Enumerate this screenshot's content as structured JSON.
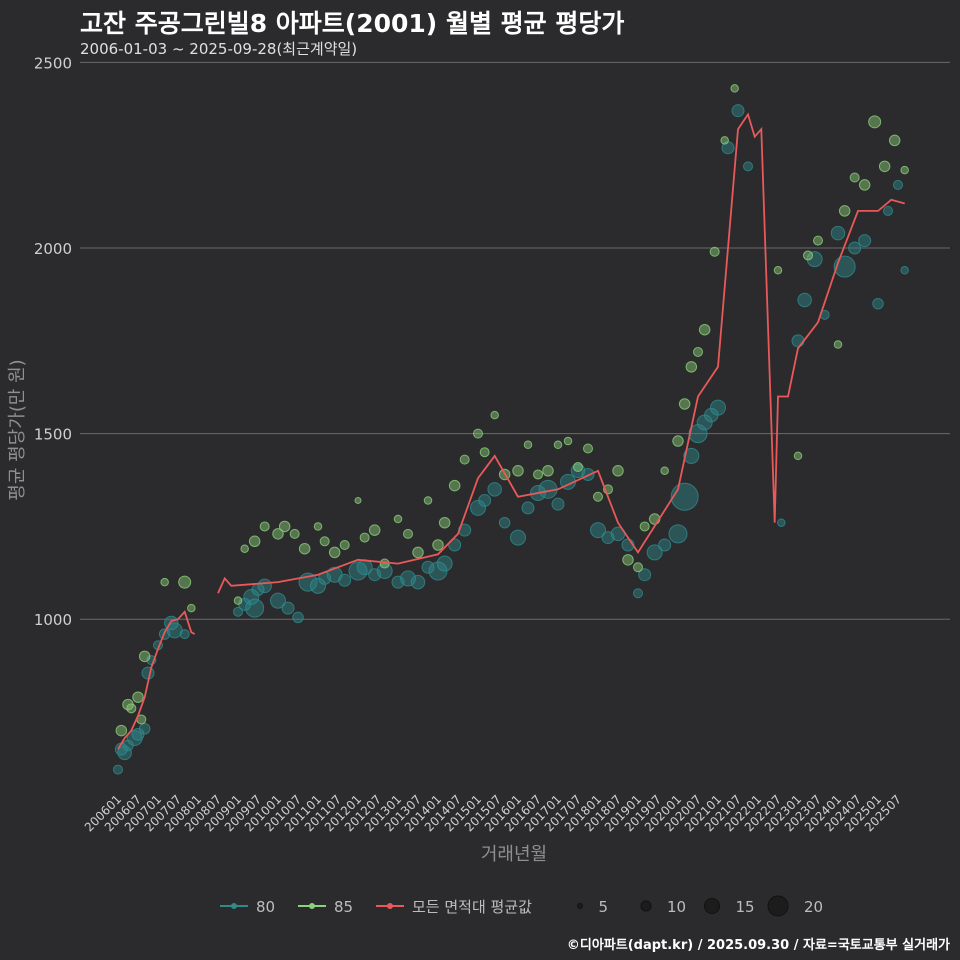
{
  "title": "고잔 주공그린빌8 아파트(2001) 월별 평균 평당가",
  "subtitle": "2006-01-03 ~ 2025-09-28(최근계약일)",
  "caption": "©디아파트(dapt.kr) / 2025.09.30 / 자료=국토교통부 실거래가",
  "chart_data": {
    "type": "scatter",
    "xlabel": "거래년월",
    "ylabel": "평균 평당가(만 원)",
    "ylim": [
      540,
      2520
    ],
    "yticks": [
      1000,
      1500,
      2000,
      2500
    ],
    "xticks": [
      "200601",
      "200607",
      "200701",
      "200707",
      "200801",
      "200807",
      "200901",
      "200907",
      "201001",
      "201007",
      "201101",
      "201107",
      "201201",
      "201207",
      "201301",
      "201307",
      "201401",
      "201407",
      "201501",
      "201507",
      "201601",
      "201607",
      "201701",
      "201707",
      "201801",
      "201807",
      "201901",
      "201907",
      "202001",
      "202007",
      "202101",
      "202107",
      "202201",
      "202207",
      "202301",
      "202307",
      "202401",
      "202407",
      "202501",
      "202507"
    ],
    "legend_placement": "bottom",
    "legend": {
      "series": [
        {
          "name": "80",
          "color": "#2f8a8c"
        },
        {
          "name": "85",
          "color": "#8bd07a"
        },
        {
          "name": "모든 면적대 평균값",
          "color": "#e8595a"
        }
      ],
      "size_title": "",
      "sizes": [
        5,
        10,
        15,
        20
      ]
    },
    "series": [
      {
        "name": "모든 면적대 평균값",
        "type": "line",
        "x": [
          "200601",
          "200603",
          "200605",
          "200607",
          "200609",
          "200611",
          "200701",
          "200703",
          "200705",
          "200707",
          "200709",
          "200711",
          "200712",
          "200801",
          "200807",
          "200809",
          "200811",
          "201001",
          "201101",
          "201201",
          "201301",
          "201401",
          "201407",
          "201501",
          "201506",
          "201601",
          "201701",
          "201801",
          "201807",
          "201901",
          "202001",
          "202007",
          "202101",
          "202107",
          "202110",
          "202112",
          "202202",
          "202206",
          "202207",
          "202210",
          "202301",
          "202307",
          "202401",
          "202407",
          "202501",
          "202505",
          "202509"
        ],
        "y": [
          650,
          680,
          700,
          740,
          790,
          870,
          920,
          965,
          995,
          1000,
          1020,
          965,
          960,
          null,
          1070,
          1110,
          1090,
          1100,
          1120,
          1160,
          1150,
          1175,
          1230,
          1380,
          1440,
          1330,
          1350,
          1400,
          1260,
          1180,
          1350,
          1600,
          1680,
          2320,
          2360,
          2300,
          2320,
          1260,
          1600,
          1600,
          1730,
          1800,
          1960,
          2100,
          2100,
          2130,
          2120
        ]
      },
      {
        "name": "80",
        "type": "scatter",
        "points": [
          [
            "200601",
            595,
            6
          ],
          [
            "200602",
            650,
            8
          ],
          [
            "200603",
            640,
            9
          ],
          [
            "200604",
            660,
            7
          ],
          [
            "200606",
            680,
            10
          ],
          [
            "200607",
            690,
            8
          ],
          [
            "200609",
            705,
            7
          ],
          [
            "200610",
            855,
            8
          ],
          [
            "200611",
            890,
            6
          ],
          [
            "200701",
            930,
            6
          ],
          [
            "200703",
            960,
            7
          ],
          [
            "200705",
            990,
            9
          ],
          [
            "200706",
            970,
            10
          ],
          [
            "200709",
            960,
            6
          ],
          [
            "200901",
            1020,
            6
          ],
          [
            "200903",
            1040,
            8
          ],
          [
            "200905",
            1060,
            10
          ],
          [
            "200906",
            1030,
            12
          ],
          [
            "200907",
            1080,
            8
          ],
          [
            "200909",
            1090,
            9
          ],
          [
            "201001",
            1050,
            10
          ],
          [
            "201004",
            1030,
            8
          ],
          [
            "201007",
            1005,
            7
          ],
          [
            "201010",
            1100,
            12
          ],
          [
            "201101",
            1090,
            10
          ],
          [
            "201103",
            1110,
            8
          ],
          [
            "201106",
            1120,
            10
          ],
          [
            "201109",
            1105,
            8
          ],
          [
            "201201",
            1130,
            12
          ],
          [
            "201203",
            1140,
            10
          ],
          [
            "201206",
            1120,
            8
          ],
          [
            "201209",
            1130,
            10
          ],
          [
            "201301",
            1100,
            8
          ],
          [
            "201304",
            1110,
            10
          ],
          [
            "201307",
            1100,
            9
          ],
          [
            "201310",
            1140,
            8
          ],
          [
            "201401",
            1130,
            12
          ],
          [
            "201403",
            1150,
            10
          ],
          [
            "201406",
            1200,
            8
          ],
          [
            "201409",
            1240,
            8
          ],
          [
            "201501",
            1300,
            10
          ],
          [
            "201503",
            1320,
            8
          ],
          [
            "201506",
            1350,
            9
          ],
          [
            "201509",
            1260,
            7
          ],
          [
            "201601",
            1220,
            10
          ],
          [
            "201604",
            1300,
            8
          ],
          [
            "201607",
            1340,
            10
          ],
          [
            "201610",
            1350,
            12
          ],
          [
            "201701",
            1310,
            8
          ],
          [
            "201704",
            1370,
            10
          ],
          [
            "201707",
            1400,
            9
          ],
          [
            "201710",
            1390,
            8
          ],
          [
            "201801",
            1240,
            10
          ],
          [
            "201804",
            1220,
            8
          ],
          [
            "201807",
            1230,
            9
          ],
          [
            "201810",
            1200,
            8
          ],
          [
            "201901",
            1070,
            6
          ],
          [
            "201903",
            1120,
            8
          ],
          [
            "201906",
            1180,
            10
          ],
          [
            "201909",
            1200,
            8
          ],
          [
            "202001",
            1230,
            12
          ],
          [
            "202003",
            1330,
            18
          ],
          [
            "202005",
            1440,
            10
          ],
          [
            "202007",
            1500,
            12
          ],
          [
            "202009",
            1530,
            10
          ],
          [
            "202011",
            1550,
            9
          ],
          [
            "202101",
            1570,
            10
          ],
          [
            "202104",
            2270,
            8
          ],
          [
            "202107",
            2370,
            8
          ],
          [
            "202110",
            2220,
            6
          ],
          [
            "202208",
            1260,
            5
          ],
          [
            "202301",
            1750,
            8
          ],
          [
            "202303",
            1860,
            9
          ],
          [
            "202306",
            1970,
            10
          ],
          [
            "202309",
            1820,
            6
          ],
          [
            "202401",
            2040,
            9
          ],
          [
            "202403",
            1950,
            14
          ],
          [
            "202406",
            2000,
            8
          ],
          [
            "202409",
            2020,
            8
          ],
          [
            "202501",
            1850,
            7
          ],
          [
            "202504",
            2100,
            6
          ],
          [
            "202507",
            2170,
            6
          ],
          [
            "202509",
            1940,
            5
          ]
        ]
      },
      {
        "name": "85",
        "type": "scatter",
        "points": [
          [
            "200602",
            700,
            7
          ],
          [
            "200604",
            770,
            7
          ],
          [
            "200605",
            760,
            6
          ],
          [
            "200607",
            790,
            7
          ],
          [
            "200608",
            730,
            6
          ],
          [
            "200609",
            900,
            7
          ],
          [
            "200703",
            1100,
            5
          ],
          [
            "200709",
            1100,
            8
          ],
          [
            "200711",
            1030,
            5
          ],
          [
            "200901",
            1050,
            5
          ],
          [
            "200903",
            1190,
            5
          ],
          [
            "200906",
            1210,
            7
          ],
          [
            "200909",
            1250,
            6
          ],
          [
            "201001",
            1230,
            7
          ],
          [
            "201003",
            1250,
            7
          ],
          [
            "201006",
            1230,
            6
          ],
          [
            "201009",
            1190,
            7
          ],
          [
            "201101",
            1250,
            5
          ],
          [
            "201103",
            1210,
            6
          ],
          [
            "201106",
            1180,
            7
          ],
          [
            "201109",
            1200,
            6
          ],
          [
            "201201",
            1320,
            4
          ],
          [
            "201203",
            1220,
            6
          ],
          [
            "201206",
            1240,
            7
          ],
          [
            "201209",
            1150,
            6
          ],
          [
            "201301",
            1270,
            5
          ],
          [
            "201304",
            1230,
            6
          ],
          [
            "201307",
            1180,
            7
          ],
          [
            "201310",
            1320,
            5
          ],
          [
            "201401",
            1200,
            7
          ],
          [
            "201403",
            1260,
            7
          ],
          [
            "201406",
            1360,
            7
          ],
          [
            "201409",
            1430,
            6
          ],
          [
            "201501",
            1500,
            6
          ],
          [
            "201503",
            1450,
            6
          ],
          [
            "201506",
            1550,
            5
          ],
          [
            "201509",
            1390,
            7
          ],
          [
            "201601",
            1400,
            7
          ],
          [
            "201604",
            1470,
            5
          ],
          [
            "201607",
            1390,
            6
          ],
          [
            "201610",
            1400,
            7
          ],
          [
            "201701",
            1470,
            5
          ],
          [
            "201704",
            1480,
            5
          ],
          [
            "201707",
            1410,
            6
          ],
          [
            "201710",
            1460,
            6
          ],
          [
            "201801",
            1330,
            6
          ],
          [
            "201804",
            1350,
            6
          ],
          [
            "201807",
            1400,
            7
          ],
          [
            "201810",
            1160,
            7
          ],
          [
            "201901",
            1140,
            6
          ],
          [
            "201903",
            1250,
            6
          ],
          [
            "201906",
            1270,
            7
          ],
          [
            "201909",
            1400,
            5
          ],
          [
            "202001",
            1480,
            7
          ],
          [
            "202003",
            1580,
            7
          ],
          [
            "202005",
            1680,
            7
          ],
          [
            "202007",
            1720,
            6
          ],
          [
            "202009",
            1780,
            7
          ],
          [
            "202012",
            1990,
            6
          ],
          [
            "202103",
            2290,
            5
          ],
          [
            "202106",
            2430,
            5
          ],
          [
            "202207",
            1940,
            5
          ],
          [
            "202301",
            1440,
            5
          ],
          [
            "202304",
            1980,
            6
          ],
          [
            "202307",
            2020,
            6
          ],
          [
            "202401",
            1740,
            5
          ],
          [
            "202403",
            2100,
            7
          ],
          [
            "202406",
            2190,
            6
          ],
          [
            "202409",
            2170,
            7
          ],
          [
            "202412",
            2340,
            8
          ],
          [
            "202503",
            2220,
            7
          ],
          [
            "202506",
            2290,
            7
          ],
          [
            "202509",
            2210,
            5
          ]
        ]
      }
    ]
  }
}
